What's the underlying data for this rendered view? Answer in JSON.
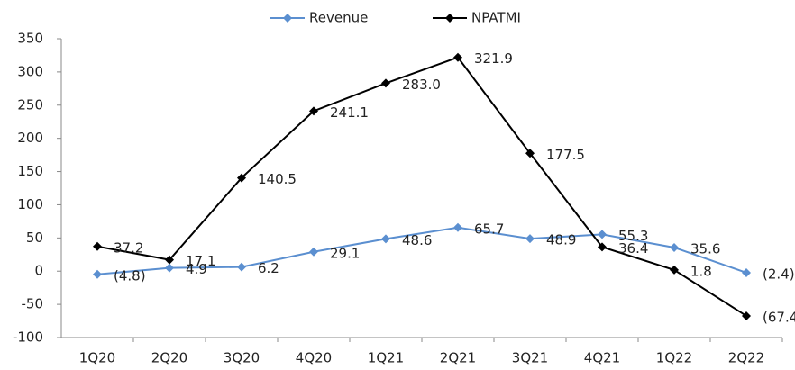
{
  "chart_data": {
    "type": "line",
    "categories": [
      "1Q20",
      "2Q20",
      "3Q20",
      "4Q20",
      "1Q21",
      "2Q21",
      "3Q21",
      "4Q21",
      "1Q22",
      "2Q22"
    ],
    "series": [
      {
        "name": "Revenue",
        "color": "#5b8fd0",
        "values": [
          -4.8,
          4.9,
          6.2,
          29.1,
          48.6,
          65.7,
          48.9,
          55.3,
          35.6,
          -2.4
        ],
        "value_labels": [
          "(4.8)",
          "4.9",
          "6.2",
          "29.1",
          "48.6",
          "65.7",
          "48.9",
          "55.3",
          "35.6",
          "(2.4)"
        ]
      },
      {
        "name": "NPATMI",
        "color": "#000000",
        "values": [
          37.2,
          17.1,
          140.5,
          241.1,
          283.0,
          321.9,
          177.5,
          36.4,
          1.8,
          -67.4
        ],
        "value_labels": [
          "37.2",
          "17.1",
          "140.5",
          "241.1",
          "283.0",
          "321.9",
          "177.5",
          "36.4",
          "1.8",
          "(67.4)"
        ]
      }
    ],
    "ylim": [
      -100,
      350
    ],
    "yticks": [
      -100,
      -50,
      0,
      50,
      100,
      150,
      200,
      250,
      300,
      350
    ],
    "grid": false,
    "legend": "top"
  }
}
